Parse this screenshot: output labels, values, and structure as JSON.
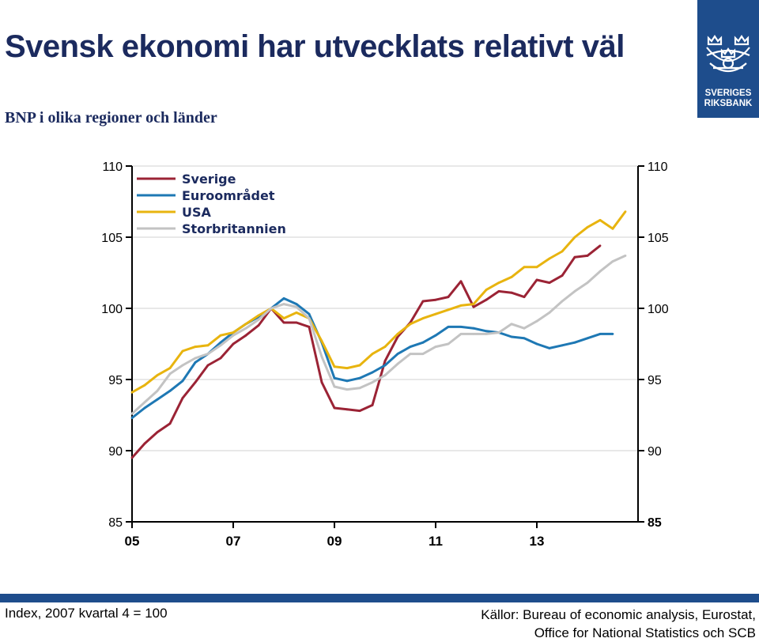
{
  "header": {
    "title": "Svensk ekonomi har utvecklats relativt väl",
    "subtitle": "BNP i olika regioner och länder"
  },
  "logo": {
    "icon": "riksbank-crest-icon",
    "line1": "SVERIGES",
    "line2": "RIKSBANK",
    "color": "#1e4d8c"
  },
  "footer": {
    "note": "Index, 2007 kvartal 4 = 100",
    "source_line1": "Källor: Bureau of economic analysis, Eurostat,",
    "source_line2": "Office for National Statistics och SCB"
  },
  "chart_data": {
    "type": "line",
    "title": "",
    "xlabel": "",
    "ylabel": "",
    "xlim": [
      2005.0,
      2015.0
    ],
    "ylim": [
      85,
      110
    ],
    "y_ticks": [
      85,
      90,
      95,
      100,
      105,
      110
    ],
    "x_ticks": [
      2005,
      2007,
      2009,
      2011,
      2013
    ],
    "x_tick_labels": [
      "05",
      "07",
      "09",
      "11",
      "13"
    ],
    "grid": "horizontal",
    "legend_position": "top-left",
    "x": [
      "2005Q1",
      "2005Q2",
      "2005Q3",
      "2005Q4",
      "2006Q1",
      "2006Q2",
      "2006Q3",
      "2006Q4",
      "2007Q1",
      "2007Q2",
      "2007Q3",
      "2007Q4",
      "2008Q1",
      "2008Q2",
      "2008Q3",
      "2008Q4",
      "2009Q1",
      "2009Q2",
      "2009Q3",
      "2009Q4",
      "2010Q1",
      "2010Q2",
      "2010Q3",
      "2010Q4",
      "2011Q1",
      "2011Q2",
      "2011Q3",
      "2011Q4",
      "2012Q1",
      "2012Q2",
      "2012Q3",
      "2012Q4",
      "2013Q1",
      "2013Q2",
      "2013Q3",
      "2013Q4",
      "2014Q1",
      "2014Q2",
      "2014Q3",
      "2014Q4"
    ],
    "series": [
      {
        "name": "Sverige",
        "color": "#9b2335",
        "values": [
          89.5,
          90.5,
          91.3,
          91.9,
          93.7,
          94.8,
          96.0,
          96.5,
          97.5,
          98.1,
          98.8,
          100.0,
          99.0,
          99.0,
          98.7,
          94.8,
          93.0,
          92.9,
          92.8,
          93.2,
          96.3,
          98.0,
          99.0,
          100.5,
          100.6,
          100.8,
          101.9,
          100.1,
          100.6,
          101.2,
          101.1,
          100.8,
          102.0,
          101.8,
          102.3,
          103.6,
          103.7,
          104.4,
          null,
          null
        ]
      },
      {
        "name": "Euroområdet",
        "color": "#1e78b4",
        "values": [
          92.3,
          93.0,
          93.6,
          94.2,
          94.9,
          96.2,
          96.8,
          97.6,
          98.3,
          98.9,
          99.4,
          100.0,
          100.7,
          100.3,
          99.6,
          97.6,
          95.1,
          94.9,
          95.1,
          95.5,
          96.0,
          96.8,
          97.3,
          97.6,
          98.1,
          98.7,
          98.7,
          98.6,
          98.4,
          98.3,
          98.0,
          97.9,
          97.5,
          97.2,
          97.4,
          97.6,
          97.9,
          98.2,
          98.2,
          null
        ]
      },
      {
        "name": "USA",
        "color": "#e8b40f",
        "values": [
          94.1,
          94.6,
          95.3,
          95.8,
          97.0,
          97.3,
          97.4,
          98.1,
          98.3,
          98.9,
          99.5,
          100.0,
          99.3,
          99.7,
          99.3,
          97.7,
          95.9,
          95.8,
          96.0,
          96.8,
          97.3,
          98.2,
          98.9,
          99.3,
          99.6,
          99.9,
          100.2,
          100.3,
          101.3,
          101.8,
          102.2,
          102.9,
          102.9,
          103.5,
          104.0,
          105.0,
          105.7,
          106.2,
          105.6,
          106.8
        ]
      },
      {
        "name": "Storbritannien",
        "color": "#c3c3c3",
        "values": [
          92.6,
          93.4,
          94.2,
          95.4,
          96.0,
          96.5,
          96.8,
          97.4,
          98.1,
          98.6,
          99.2,
          100.0,
          100.3,
          100.1,
          99.3,
          96.6,
          94.5,
          94.3,
          94.4,
          94.8,
          95.3,
          96.1,
          96.8,
          96.8,
          97.3,
          97.5,
          98.2,
          98.2,
          98.2,
          98.3,
          98.9,
          98.6,
          99.1,
          99.7,
          100.5,
          101.2,
          101.8,
          102.6,
          103.3,
          103.7
        ]
      }
    ]
  }
}
